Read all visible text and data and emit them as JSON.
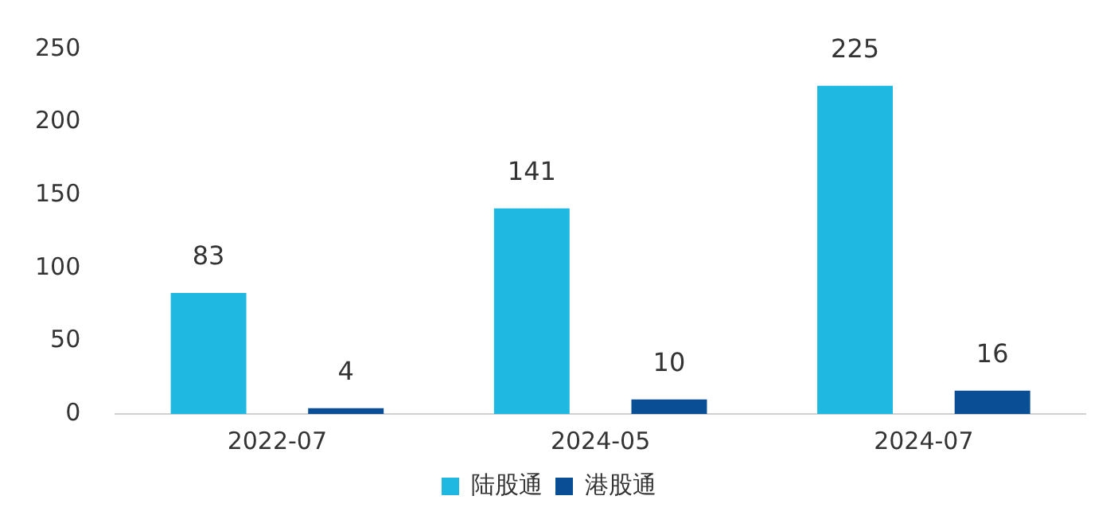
{
  "chart_data": {
    "type": "bar",
    "categories": [
      "2022-07",
      "2024-05",
      "2024-07"
    ],
    "series": [
      {
        "name": "陆股通",
        "color": "#1fb8e0",
        "values": [
          83,
          141,
          225
        ]
      },
      {
        "name": "港股通",
        "color": "#0a4f96",
        "values": [
          4,
          10,
          16
        ]
      }
    ],
    "ylim": [
      0,
      250
    ],
    "yticks": [
      0,
      50,
      100,
      150,
      200,
      250
    ],
    "grid": false,
    "legend": "bottom",
    "data_labels": true
  }
}
